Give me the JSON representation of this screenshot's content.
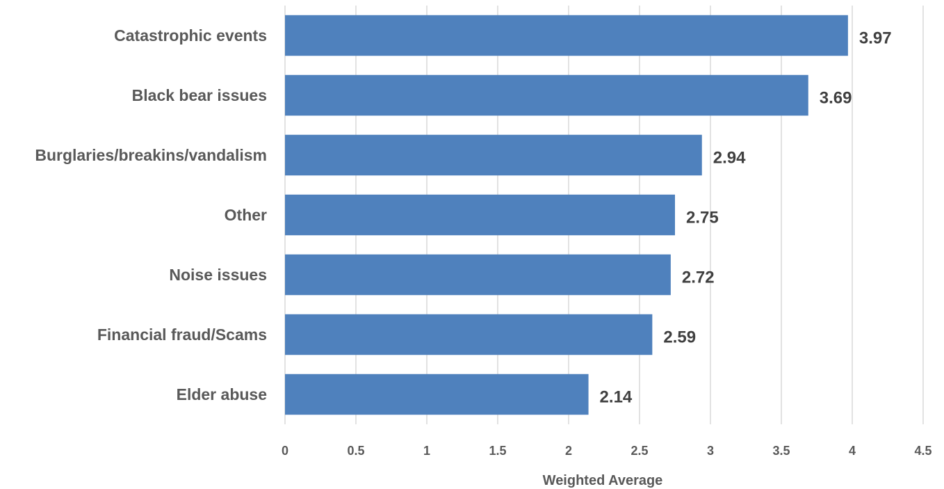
{
  "chart_data": {
    "type": "bar",
    "orientation": "horizontal",
    "title": "",
    "xlabel": "Weighted Average",
    "ylabel": "",
    "xlim": [
      0,
      4.5
    ],
    "x_ticks": [
      "0",
      "0.5",
      "1",
      "1.5",
      "2",
      "2.5",
      "3",
      "3.5",
      "4",
      "4.5"
    ],
    "grid": "vertical",
    "legend": "none",
    "bar_color": "#4f81bd",
    "categories": [
      "Catastrophic events",
      "Black bear issues",
      "Burglaries/breakins/vandalism",
      "Other",
      "Noise issues",
      "Financial fraud/Scams",
      "Elder abuse"
    ],
    "values": [
      3.97,
      3.69,
      2.94,
      2.75,
      2.72,
      2.59,
      2.14
    ],
    "value_labels": [
      "3.97",
      "3.69",
      "2.94",
      "2.75",
      "2.72",
      "2.59",
      "2.14"
    ]
  }
}
